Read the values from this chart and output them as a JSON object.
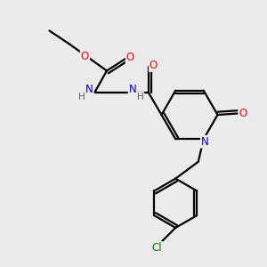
{
  "background_color": "#ebebeb",
  "bond_color": "#000000",
  "atom_colors": {
    "O": "#ff0000",
    "N": "#0000cc",
    "Cl": "#008000",
    "H": "#606060"
  },
  "figsize": [
    3.0,
    3.0
  ],
  "dpi": 100,
  "lw": 1.6
}
